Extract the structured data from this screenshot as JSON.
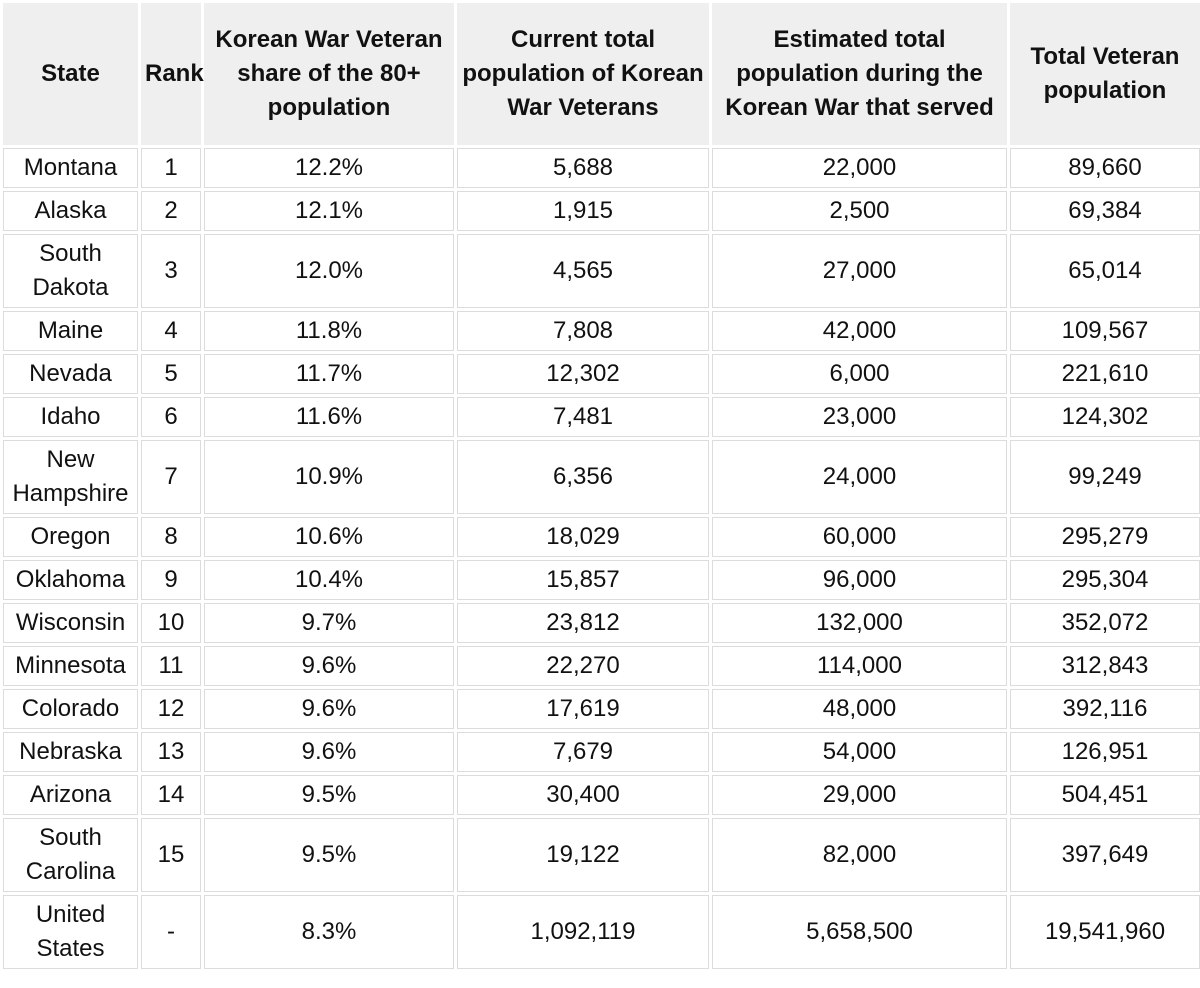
{
  "table": {
    "headers": [
      "State",
      "Rank",
      "Korean War Veteran share of the 80+ population",
      "Current total population of Korean War Veterans",
      "Estimated total population during the Korean War that served",
      "Total Veteran population"
    ],
    "rows": [
      [
        "Montana",
        "1",
        "12.2%",
        "5,688",
        "22,000",
        "89,660"
      ],
      [
        "Alaska",
        "2",
        "12.1%",
        "1,915",
        "2,500",
        "69,384"
      ],
      [
        "South Dakota",
        "3",
        "12.0%",
        "4,565",
        "27,000",
        "65,014"
      ],
      [
        "Maine",
        "4",
        "11.8%",
        "7,808",
        "42,000",
        "109,567"
      ],
      [
        "Nevada",
        "5",
        "11.7%",
        "12,302",
        "6,000",
        "221,610"
      ],
      [
        "Idaho",
        "6",
        "11.6%",
        "7,481",
        "23,000",
        "124,302"
      ],
      [
        "New Hampshire",
        "7",
        "10.9%",
        "6,356",
        "24,000",
        "99,249"
      ],
      [
        "Oregon",
        "8",
        "10.6%",
        "18,029",
        "60,000",
        "295,279"
      ],
      [
        "Oklahoma",
        "9",
        "10.4%",
        "15,857",
        "96,000",
        "295,304"
      ],
      [
        "Wisconsin",
        "10",
        "9.7%",
        "23,812",
        "132,000",
        "352,072"
      ],
      [
        "Minnesota",
        "11",
        "9.6%",
        "22,270",
        "114,000",
        "312,843"
      ],
      [
        "Colorado",
        "12",
        "9.6%",
        "17,619",
        "48,000",
        "392,116"
      ],
      [
        "Nebraska",
        "13",
        "9.6%",
        "7,679",
        "54,000",
        "126,951"
      ],
      [
        "Arizona",
        "14",
        "9.5%",
        "30,400",
        "29,000",
        "504,451"
      ],
      [
        "South Carolina",
        "15",
        "9.5%",
        "19,122",
        "82,000",
        "397,649"
      ],
      [
        "United States",
        "-",
        "8.3%",
        "1,092,119",
        "5,658,500",
        "19,541,960"
      ]
    ]
  }
}
